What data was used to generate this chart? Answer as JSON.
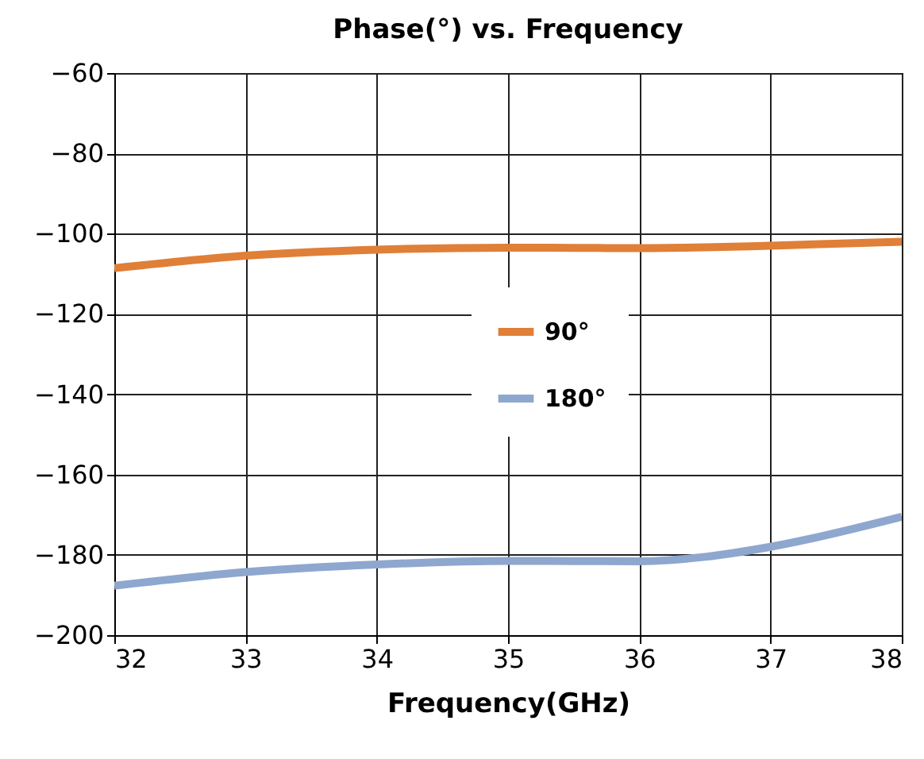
{
  "chart_data": {
    "type": "line",
    "title": "Phase(°)  vs. Frequency",
    "xlabel": "Frequency(GHz)",
    "x": [
      32,
      33,
      34,
      35,
      36,
      36.5,
      37,
      38
    ],
    "series": [
      {
        "name": "90°",
        "color": "#e07f37",
        "values": [
          -108.6,
          -105.5,
          -104,
          -103.5,
          -103.6,
          -103.4,
          -103,
          -102
        ]
      },
      {
        "name": "180°",
        "color": "#8ea7cf",
        "values": [
          -187.7,
          -184.3,
          -182.4,
          -181.5,
          -181.6,
          -180.5,
          -178,
          -170.5
        ]
      }
    ],
    "xlim": [
      32,
      38
    ],
    "xticks": [
      32,
      33,
      34,
      35,
      36,
      37,
      38
    ],
    "ylim": [
      -200,
      -60
    ],
    "yticks": [
      -200,
      -180,
      -160,
      -140,
      -120,
      -100,
      -80,
      -60
    ],
    "grid": true,
    "legend": "center",
    "marker": "none",
    "line_style": "solid"
  }
}
